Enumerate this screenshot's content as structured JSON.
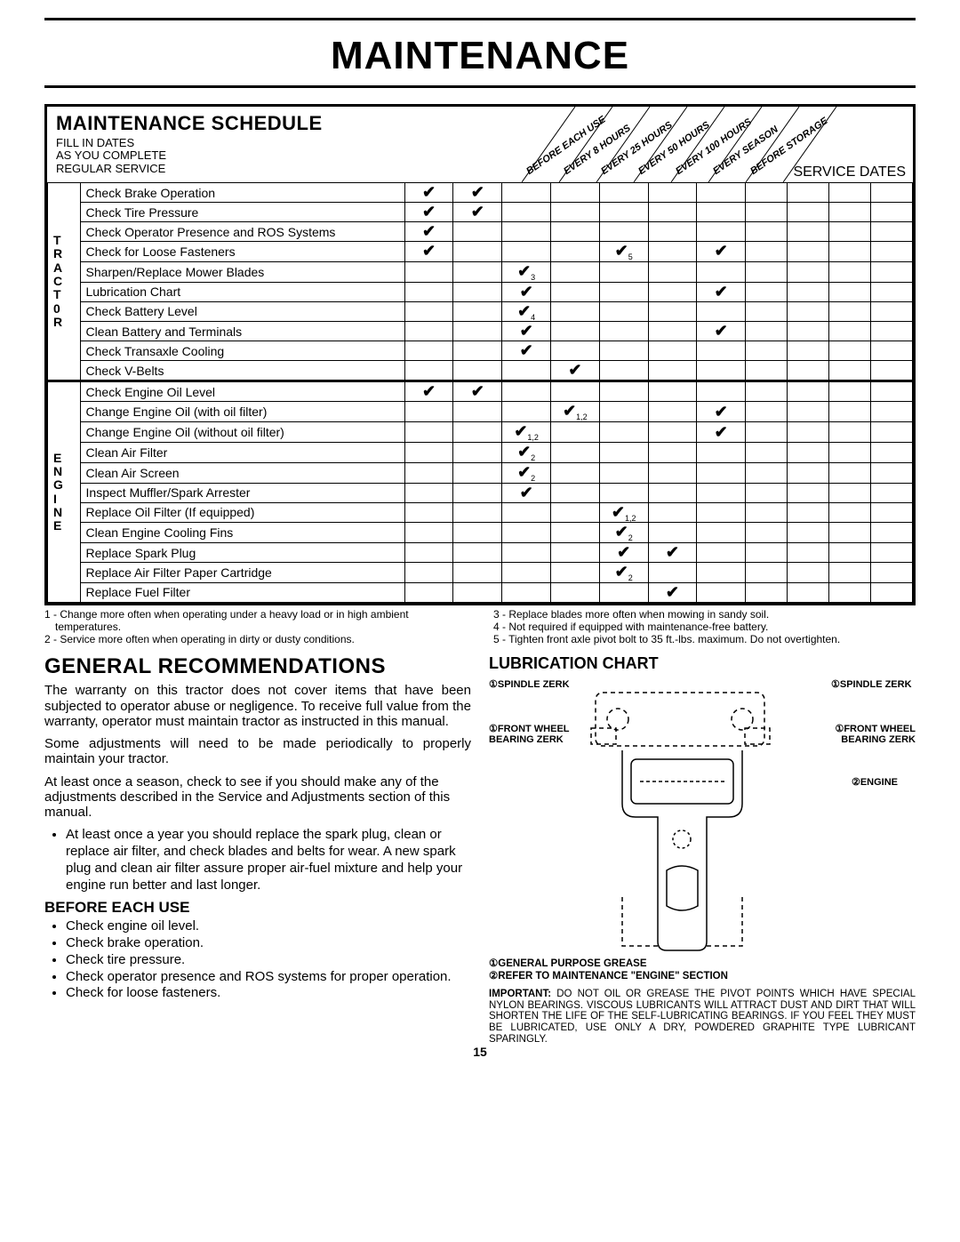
{
  "page": {
    "title": "MAINTENANCE",
    "number": "15"
  },
  "schedule": {
    "title": "MAINTENANCE SCHEDULE",
    "fill_dates": [
      "FILL IN DATES",
      "AS YOU COMPLETE",
      "REGULAR SERVICE"
    ],
    "interval_headers": [
      "BEFORE EACH USE",
      "EVERY 8 HOURS",
      "EVERY 25 HOURS",
      "EVERY 50 HOURS",
      "EVERY 100 HOURS",
      "EVERY SEASON",
      "BEFORE STORAGE"
    ],
    "service_dates_label": "SERVICE DATES",
    "side_text": "maint_sch-tractors-ROS.e",
    "groups": [
      {
        "label": "T\nR\nA\nC\nT\n0\nR",
        "rows": [
          {
            "task": "Check Brake Operation",
            "checks": [
              "✔",
              "✔",
              "",
              "",
              "",
              "",
              ""
            ]
          },
          {
            "task": "Check Tire Pressure",
            "checks": [
              "✔",
              "✔",
              "",
              "",
              "",
              "",
              ""
            ]
          },
          {
            "task": "Check Operator Presence and ROS Systems",
            "checks": [
              "✔",
              "",
              "",
              "",
              "",
              "",
              ""
            ]
          },
          {
            "task": "Check for Loose Fasteners",
            "checks": [
              "✔",
              "",
              "",
              "",
              "✔5",
              "",
              "✔"
            ]
          },
          {
            "task": "Sharpen/Replace Mower Blades",
            "checks": [
              "",
              "",
              "✔3",
              "",
              "",
              "",
              ""
            ]
          },
          {
            "task": "Lubrication Chart",
            "checks": [
              "",
              "",
              "✔",
              "",
              "",
              "",
              "✔"
            ]
          },
          {
            "task": "Check Battery Level",
            "checks": [
              "",
              "",
              "✔4",
              "",
              "",
              "",
              ""
            ]
          },
          {
            "task": "Clean Battery and Terminals",
            "checks": [
              "",
              "",
              "✔",
              "",
              "",
              "",
              "✔"
            ]
          },
          {
            "task": "Check Transaxle Cooling",
            "checks": [
              "",
              "",
              "✔",
              "",
              "",
              "",
              ""
            ]
          },
          {
            "task": "Check V-Belts",
            "checks": [
              "",
              "",
              "",
              "✔",
              "",
              "",
              ""
            ]
          }
        ]
      },
      {
        "label": "E\nN\nG\nI\nN\nE",
        "rows": [
          {
            "task": "Check Engine Oil Level",
            "checks": [
              "✔",
              "✔",
              "",
              "",
              "",
              "",
              ""
            ]
          },
          {
            "task": "Change Engine Oil (with oil filter)",
            "checks": [
              "",
              "",
              "",
              "✔1,2",
              "",
              "",
              "✔"
            ]
          },
          {
            "task": "Change Engine Oil (without oil filter)",
            "checks": [
              "",
              "",
              "✔1,2",
              "",
              "",
              "",
              "✔"
            ]
          },
          {
            "task": "Clean Air Filter",
            "checks": [
              "",
              "",
              "✔2",
              "",
              "",
              "",
              ""
            ]
          },
          {
            "task": "Clean Air Screen",
            "checks": [
              "",
              "",
              "✔2",
              "",
              "",
              "",
              ""
            ]
          },
          {
            "task": "Inspect Muffler/Spark Arrester",
            "checks": [
              "",
              "",
              "✔",
              "",
              "",
              "",
              ""
            ]
          },
          {
            "task": "Replace Oil Filter (If equipped)",
            "checks": [
              "",
              "",
              "",
              "",
              "✔1,2",
              "",
              ""
            ]
          },
          {
            "task": "Clean Engine Cooling Fins",
            "checks": [
              "",
              "",
              "",
              "",
              "✔2",
              "",
              ""
            ]
          },
          {
            "task": "Replace Spark Plug",
            "checks": [
              "",
              "",
              "",
              "",
              "✔",
              "✔",
              ""
            ]
          },
          {
            "task": "Replace Air Filter Paper Cartridge",
            "checks": [
              "",
              "",
              "",
              "",
              "✔2",
              "",
              ""
            ]
          },
          {
            "task": "Replace Fuel Filter",
            "checks": [
              "",
              "",
              "",
              "",
              "",
              "✔",
              ""
            ]
          }
        ]
      }
    ],
    "footnotes": {
      "left": [
        "1 - Change more often when operating under a heavy load or in high ambient temperatures.",
        "2 - Service more often when operating in dirty or dusty conditions."
      ],
      "right": [
        "3 - Replace blades more often when mowing in sandy soil.",
        "4 - Not required if equipped with maintenance-free battery.",
        "5 - Tighten front axle pivot bolt to 35 ft.-lbs. maximum. Do not overtighten."
      ]
    }
  },
  "general": {
    "title": "GENERAL RECOMMENDATIONS",
    "p1": "The warranty on this tractor does not cover items that have been subjected to operator abuse or negligence. To receive full value from the warranty, operator must maintain tractor as instructed in this manual.",
    "p2": "Some adjustments will need to be made periodically to properly maintain your tractor.",
    "p3": "At least once a season, check to see if you should make any of the adjustments described in the Service and Adjustments section of this manual.",
    "bullet_year": "At least once a year you should replace the spark plug, clean or replace air filter, and check blades and belts for wear.  A new spark plug and clean air filter assure proper air-fuel mixture and help your engine run better and last longer.",
    "before_each_use": {
      "title": "BEFORE EACH USE",
      "items": [
        "Check engine oil level.",
        "Check brake operation.",
        "Check tire pressure.",
        "Check operator presence and ROS systems for proper operation.",
        "Check for loose fasteners."
      ]
    }
  },
  "lubrication": {
    "title": "LUBRICATION CHART",
    "labels": {
      "spindle_l": "①SPINDLE ZERK",
      "spindle_r": "①SPINDLE ZERK",
      "wheel_l": "①FRONT WHEEL BEARING  ZERK",
      "wheel_r": "①FRONT WHEEL BEARING  ZERK",
      "engine": "②ENGINE"
    },
    "legend": [
      "①GENERAL PURPOSE GREASE",
      "②REFER TO MAINTENANCE  \"ENGINE\" SECTION"
    ],
    "important_label": "IMPORTANT:",
    "important": "DO NOT OIL OR GREASE THE PIVOT POINTS WHICH HAVE SPECIAL NYLON BEARINGS.  VISCOUS LUBRICANTS WILL ATTRACT DUST AND DIRT THAT WILL SHORTEN THE LIFE OF THE SELF-LUBRICATING BEARINGS.  IF YOU FEEL THEY MUST BE LUBRICATED, USE ONLY A DRY, POWDERED GRAPHITE TYPE LUBRICANT SPARINGLY."
  }
}
